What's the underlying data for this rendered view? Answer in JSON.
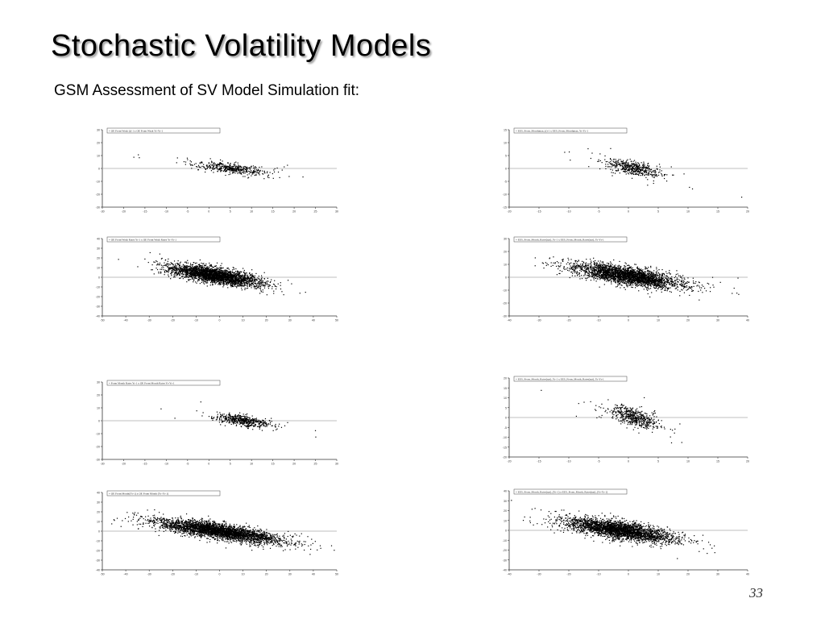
{
  "slide": {
    "title": "Stochastic Volatility Models",
    "subtitle": "GSM Assessment of SV Model Simulation fit:",
    "page_number": "33"
  },
  "chart_data": [
    {
      "type": "scatter",
      "legend": "+ OE From Weak (r)-1 x OE From Weak Yr-Yr-1",
      "legend_placement": "top-left",
      "xlim": [
        -30,
        30
      ],
      "ylim": [
        -30,
        30
      ],
      "x_ticks": [
        "-30",
        "-20",
        "-15",
        "-10",
        "-5",
        "0",
        "5",
        "10",
        "15",
        "20",
        "25",
        "30"
      ],
      "y_ticks": [
        "30",
        "20",
        "10",
        "0",
        "-10",
        "-20",
        "-30"
      ],
      "cloud": {
        "cx": 3,
        "cy": 0,
        "sx": 4.5,
        "sy": 2.5,
        "rho": -0.6,
        "n": 450,
        "outliers": 25
      },
      "grid": "horizontal zero line"
    },
    {
      "type": "scatter",
      "legend": "+ EES_From_Monthman_(r)-1 x EES_From_Monthman_Yr-Yr-1",
      "legend_placement": "top-left",
      "xlim": [
        -20,
        20
      ],
      "ylim": [
        -15,
        15
      ],
      "x_ticks": [
        "-20",
        "-15",
        "-10",
        "-5",
        "0",
        "5",
        "10",
        "15",
        "20"
      ],
      "y_ticks": [
        "15",
        "10",
        "5",
        "0",
        "-5",
        "-10",
        "-15"
      ],
      "cloud": {
        "cx": 1,
        "cy": 0,
        "sx": 2.2,
        "sy": 1.7,
        "rho": -0.6,
        "n": 450,
        "outliers": 40
      },
      "grid": "horizontal zero line"
    },
    {
      "type": "scatter",
      "legend": "+ OE From Weak Rates Yr-1 x OE From Weak Rates Yr-Yr-1",
      "legend_placement": "top-left",
      "xlim": [
        -50,
        50
      ],
      "ylim": [
        -40,
        40
      ],
      "x_ticks": [
        "-50",
        "-40",
        "-30",
        "-20",
        "-10",
        "0",
        "10",
        "20",
        "30",
        "40",
        "50"
      ],
      "y_ticks": [
        "40",
        "30",
        "20",
        "10",
        "0",
        "-10",
        "-20",
        "-30",
        "-40"
      ],
      "cloud": {
        "cx": -2,
        "cy": 2,
        "sx": 10,
        "sy": 5.5,
        "rho": -0.7,
        "n": 2800,
        "outliers": 40
      },
      "grid": "horizontal zero line"
    },
    {
      "type": "scatter",
      "legend": "+ EES_From_Month_Rates(nat)_Yr-1 x EES_From_Month_Rates(nat)_Yr-Yr-1",
      "legend_placement": "top-left",
      "xlim": [
        -40,
        40
      ],
      "ylim": [
        -30,
        30
      ],
      "x_ticks": [
        "-40",
        "-30",
        "-20",
        "-10",
        "0",
        "10",
        "20",
        "30",
        "40"
      ],
      "y_ticks": [
        "30",
        "20",
        "10",
        "0",
        "-10",
        "-20",
        "-30"
      ],
      "cloud": {
        "cx": 0,
        "cy": 1,
        "sx": 9,
        "sy": 4.5,
        "rho": -0.7,
        "n": 2800,
        "outliers": 40
      },
      "grid": "horizontal zero line"
    },
    {
      "type": "scatter",
      "legend": "+ From Month Rates Yr-1 x OE From Month Rates Yr-Yr-1",
      "legend_placement": "top-left",
      "xlim": [
        -30,
        30
      ],
      "ylim": [
        -30,
        30
      ],
      "x_ticks": [
        "-30",
        "-20",
        "-15",
        "-10",
        "-5",
        "0",
        "5",
        "10",
        "15",
        "20",
        "25",
        "30"
      ],
      "y_ticks": [
        "30",
        "20",
        "10",
        "0",
        "-10",
        "-20",
        "-30"
      ],
      "cloud": {
        "cx": 6,
        "cy": 0,
        "sx": 3.5,
        "sy": 2.6,
        "rho": -0.6,
        "n": 500,
        "outliers": 25
      },
      "grid": "horizontal zero line"
    },
    {
      "type": "scatter",
      "legend": "+ EES_From_Month_Rates(nat)_Yr-1 x EES_From_Month_Rates(nat)_Yr-Yr-1",
      "legend_placement": "top-left",
      "xlim": [
        -20,
        20
      ],
      "ylim": [
        -20,
        20
      ],
      "x_ticks": [
        "-20",
        "-15",
        "-10",
        "-5",
        "0",
        "5",
        "10",
        "15",
        "20"
      ],
      "y_ticks": [
        "20",
        "15",
        "10",
        "5",
        "0",
        "-5",
        "-10",
        "-15",
        "-20"
      ],
      "cloud": {
        "cx": 1,
        "cy": 0,
        "sx": 2,
        "sy": 2.8,
        "rho": -0.6,
        "n": 500,
        "outliers": 45
      },
      "grid": "horizontal zero line"
    },
    {
      "type": "scatter",
      "legend": "+ OE From Month(Yr-1) x OE From Month (Yr-Yr-1)",
      "legend_placement": "top-left",
      "xlim": [
        -50,
        50
      ],
      "ylim": [
        -40,
        40
      ],
      "x_ticks": [
        "-50",
        "-40",
        "-30",
        "-20",
        "-10",
        "0",
        "10",
        "20",
        "30",
        "40",
        "50"
      ],
      "y_ticks": [
        "40",
        "30",
        "20",
        "10",
        "0",
        "-10",
        "-20",
        "-30",
        "-40"
      ],
      "cloud": {
        "cx": 0,
        "cy": 0,
        "sx": 13,
        "sy": 6,
        "rho": -0.75,
        "n": 3200,
        "outliers": 40
      },
      "grid": "horizontal zero line"
    },
    {
      "type": "scatter",
      "legend": "+ EES_From_Month_Rates(nat)_(Yr-1) x EES_From_Month_Rates(nat)_(Yr-Yr-1)",
      "legend_placement": "top-left",
      "xlim": [
        -40,
        40
      ],
      "ylim": [
        -40,
        40
      ],
      "x_ticks": [
        "-40",
        "-30",
        "-20",
        "-10",
        "0",
        "10",
        "20",
        "30",
        "40"
      ],
      "y_ticks": [
        "40",
        "30",
        "20",
        "10",
        "0",
        "-10",
        "-20",
        "-30",
        "-40"
      ],
      "cloud": {
        "cx": -3,
        "cy": 0,
        "sx": 9,
        "sy": 6,
        "rho": -0.7,
        "n": 2800,
        "outliers": 45
      },
      "grid": "horizontal zero line"
    }
  ]
}
